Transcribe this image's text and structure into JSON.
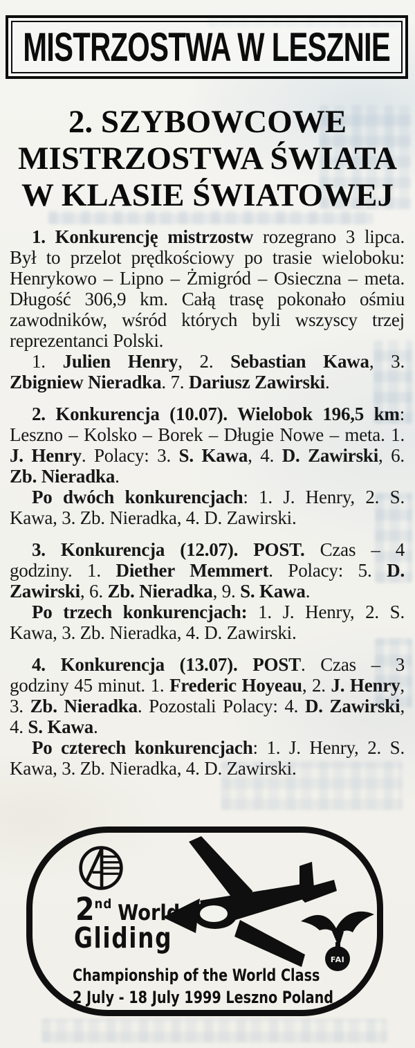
{
  "page": {
    "paper_color": "#f3f3ee",
    "ink_color": "#141414"
  },
  "masthead": {
    "title": "MISTRZOSTWA W LESZNIE"
  },
  "article": {
    "title_lines": [
      "2. SZYBOWCOWE",
      "MISTRZOSTWA ŚWIATA",
      "W KLASIE ŚWIATOWEJ"
    ],
    "paragraphs": [
      {
        "runs": [
          {
            "t": "1. Konkurencję mistrzostw",
            "b": true
          },
          {
            "t": " rozegrano 3 lipca. Był to przelot prędkościowy po trasie wieloboku: Henrykowo – Lipno – Żmigród – Osieczna – meta. Długość 306,9 km. Całą trasę pokonało ośmiu zawodników, wśród których byli wszyscy trzej reprezentanci Polski.",
            "b": false
          }
        ]
      },
      {
        "runs": [
          {
            "t": "1. ",
            "b": false
          },
          {
            "t": "Julien Henry",
            "b": true
          },
          {
            "t": ", 2. ",
            "b": false
          },
          {
            "t": "Sebastian Kawa",
            "b": true
          },
          {
            "t": ", 3. ",
            "b": false
          },
          {
            "t": "Zbigniew Nieradka",
            "b": true
          },
          {
            "t": ". 7. ",
            "b": false
          },
          {
            "t": "Dariusz Zawirski",
            "b": true
          },
          {
            "t": ".",
            "b": false
          }
        ]
      },
      {
        "runs": [
          {
            "t": "2. Konkurencja (10.07). Wielobok 196,5 km",
            "b": true
          },
          {
            "t": ": Leszno – Kolsko – Borek – Długie Nowe – meta. 1. ",
            "b": false
          },
          {
            "t": "J. Henry",
            "b": true
          },
          {
            "t": ". Polacy: 3. ",
            "b": false
          },
          {
            "t": "S. Kawa",
            "b": true
          },
          {
            "t": ", 4. ",
            "b": false
          },
          {
            "t": "D. Zawirski",
            "b": true
          },
          {
            "t": ", 6. ",
            "b": false
          },
          {
            "t": "Zb. Nieradka",
            "b": true
          },
          {
            "t": ".",
            "b": false
          }
        ]
      },
      {
        "runs": [
          {
            "t": "Po dwóch konkurencjach",
            "b": true
          },
          {
            "t": ": 1. J. Henry, 2. S. Kawa, 3. Zb. Nieradka, 4. D. Zawirski.",
            "b": false
          }
        ]
      },
      {
        "runs": [
          {
            "t": "3. Konkurencja (12.07). POST.",
            "b": true
          },
          {
            "t": " Czas – 4 godziny. 1. ",
            "b": false
          },
          {
            "t": "Diether Memmert",
            "b": true
          },
          {
            "t": ". Polacy: 5. ",
            "b": false
          },
          {
            "t": "D. Zawirski",
            "b": true
          },
          {
            "t": ", 6. ",
            "b": false
          },
          {
            "t": "Zb. Nieradka",
            "b": true
          },
          {
            "t": ", 9. ",
            "b": false
          },
          {
            "t": "S. Kawa",
            "b": true
          },
          {
            "t": ".",
            "b": false
          }
        ]
      },
      {
        "runs": [
          {
            "t": "Po trzech konkurencjach:",
            "b": true
          },
          {
            "t": " 1. J. Henry, 2. S. Kawa, 3. Zb. Nieradka, 4. D. Zawirski.",
            "b": false
          }
        ]
      },
      {
        "runs": [
          {
            "t": "4. Konkurencja (13.07). POST",
            "b": true
          },
          {
            "t": ". Czas – 3 godziny 45 minut. 1. ",
            "b": false
          },
          {
            "t": "Frederic Hoyeau",
            "b": true
          },
          {
            "t": ", 2. ",
            "b": false
          },
          {
            "t": "J. Henry",
            "b": true
          },
          {
            "t": ", 3. ",
            "b": false
          },
          {
            "t": "Zb. Nieradka",
            "b": true
          },
          {
            "t": ". Pozostali Polacy: 4. ",
            "b": false
          },
          {
            "t": "D. Zawirski",
            "b": true
          },
          {
            "t": ", 4. ",
            "b": false
          },
          {
            "t": "S. Kawa",
            "b": true
          },
          {
            "t": ".",
            "b": false
          }
        ]
      },
      {
        "runs": [
          {
            "t": "Po czterech konkurencjach",
            "b": true
          },
          {
            "t": ": 1. J. Henry, 2. S. Kawa, 3. Zb. Nieradka, 4. D. Zawirski.",
            "b": false
          }
        ]
      }
    ]
  },
  "stamp": {
    "ordinal": "2",
    "ordinal_suffix": "nd",
    "world": "World",
    "gliding": "Gliding",
    "subtitle": "Championship of the World Class",
    "dates": "2 July - 18 July 1999 Leszno Poland",
    "fai_label": "FAI"
  }
}
